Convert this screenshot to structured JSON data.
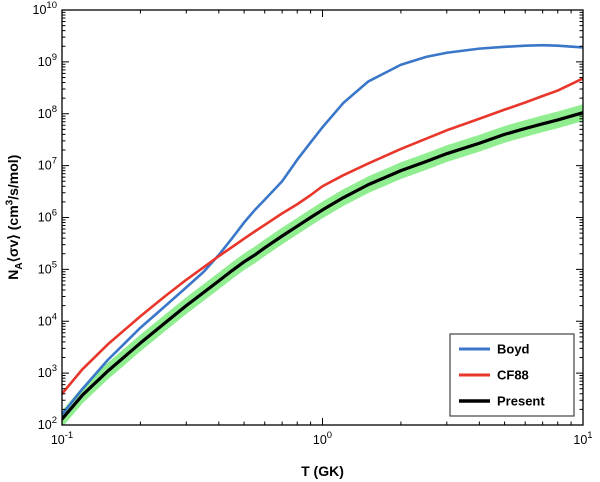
{
  "figure": {
    "background": "#ffffff",
    "frame_color": "#000000"
  },
  "chart_data": {
    "type": "line",
    "title": "",
    "xlabel": "T (GK)",
    "ylabel": "N_A⟨σv⟩ (cm^3/s/mol)",
    "ylabel_parts": [
      {
        "text": "N"
      },
      {
        "text": "A",
        "style": "sub"
      },
      {
        "text": "⟨σv⟩  (cm"
      },
      {
        "text": "3",
        "style": "sup"
      },
      {
        "text": "/s/mol)"
      }
    ],
    "x_axis": {
      "scale": "log",
      "min": 0.1,
      "max": 10,
      "tick_exponents": [
        -1,
        0,
        1
      ],
      "minor_ticks": true
    },
    "y_axis": {
      "scale": "log",
      "min": 100.0,
      "max": 10000000000.0,
      "tick_exponents": [
        2,
        3,
        4,
        5,
        6,
        7,
        8,
        9,
        10
      ],
      "minor_ticks": true
    },
    "x": [
      0.1,
      0.12,
      0.15,
      0.2,
      0.25,
      0.3,
      0.35,
      0.4,
      0.45,
      0.5,
      0.55,
      0.6,
      0.7,
      0.8,
      0.9,
      1.0,
      1.2,
      1.5,
      2.0,
      2.5,
      3.0,
      4.0,
      5.0,
      6.0,
      7.0,
      8.0,
      10.0
    ],
    "series": [
      {
        "name": "Boyd",
        "color": "#3b77c9",
        "width": 2.6,
        "values": [
          160.0,
          500.0,
          1800.0,
          7500.0,
          20000.0,
          45000.0,
          90000.0,
          190000.0,
          400000.0,
          800000.0,
          1400000.0,
          2200000.0,
          5000000.0,
          13000000.0,
          28000000.0,
          55000000.0,
          160000000.0,
          420000000.0,
          880000000.0,
          1250000000.0,
          1500000000.0,
          1800000000.0,
          1950000000.0,
          2050000000.0,
          2100000000.0,
          2050000000.0,
          1900000000.0
        ]
      },
      {
        "name": "CF88",
        "color": "#e8362a",
        "width": 2.6,
        "values": [
          400.0,
          1200.0,
          3600.0,
          12500.0,
          31000.0,
          63000.0,
          110000.0,
          180000.0,
          270000.0,
          390000.0,
          540000.0,
          720000.0,
          1200000.0,
          1800000.0,
          2700000.0,
          4000000.0,
          6500000.0,
          11000000.0,
          21000000.0,
          33000000.0,
          48000000.0,
          80000000.0,
          120000000.0,
          165000000.0,
          220000000.0,
          280000000.0,
          480000000.0
        ]
      },
      {
        "name": "Present",
        "color": "#000000",
        "width": 3.2,
        "values": [
          130.0,
          380.0,
          1100.0,
          3800.0,
          9500.0,
          20000.0,
          36000.0,
          60000.0,
          95000.0,
          140000.0,
          190000.0,
          260000.0,
          440000.0,
          680000.0,
          1000000.0,
          1400000.0,
          2400000.0,
          4300000.0,
          8000000.0,
          12000000.0,
          17000000.0,
          27000000.0,
          40000000.0,
          52000000.0,
          64000000.0,
          76000000.0,
          105000000.0
        ],
        "band": {
          "color": "#90ee90",
          "factor": 1.45,
          "meaning": "uncertainty band around Present rate"
        }
      }
    ],
    "legend": {
      "position": "bottom-right",
      "entries": [
        "Boyd",
        "CF88",
        "Present"
      ]
    }
  }
}
